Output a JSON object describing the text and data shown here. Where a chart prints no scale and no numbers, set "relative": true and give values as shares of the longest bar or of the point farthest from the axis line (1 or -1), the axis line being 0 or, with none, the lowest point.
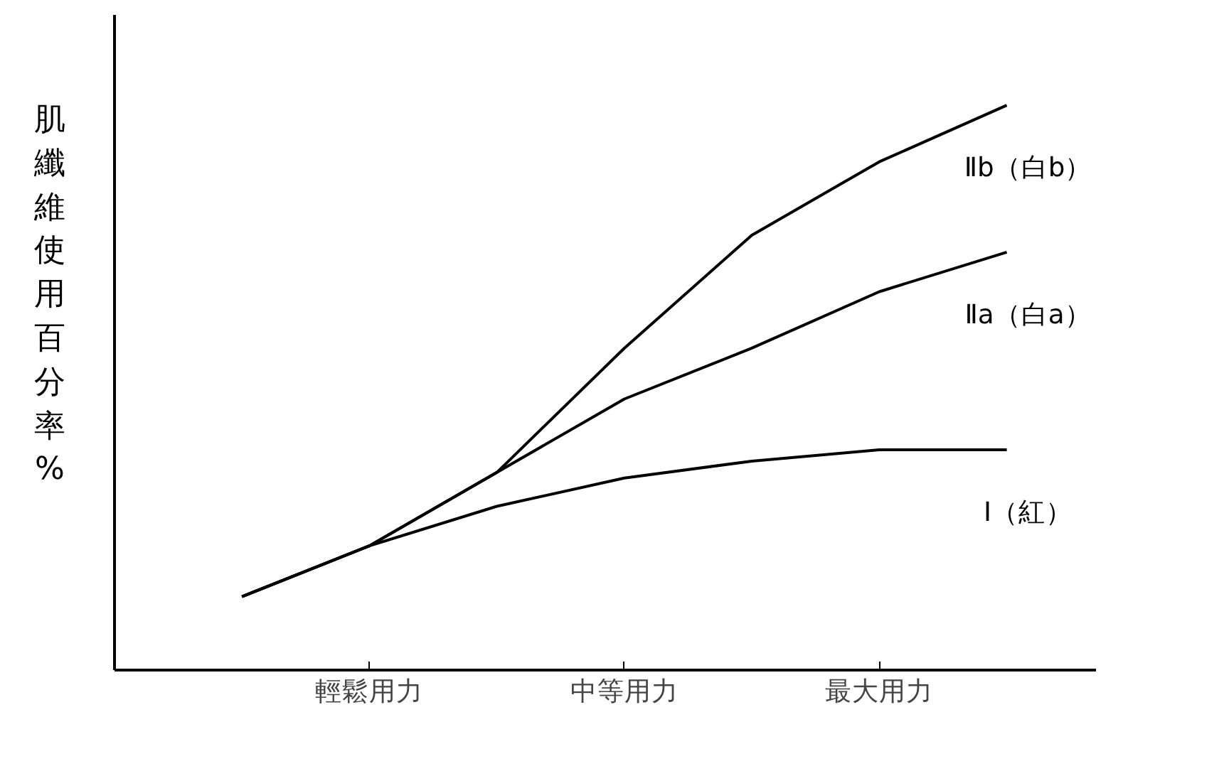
{
  "chart_data": {
    "type": "line",
    "relative": true,
    "ylabel": "肌纖維使用百分率%",
    "grid": false,
    "marker": "none",
    "line_style": "solid",
    "categories": [
      null,
      "輕鬆用力",
      null,
      "中等用力",
      null,
      "最大用力",
      null
    ],
    "series": [
      {
        "name": "Ⅱb（白b）",
        "color": "#000000",
        "values": [
          0.13,
          0.22,
          0.35,
          0.57,
          0.77,
          0.9,
          1.0
        ]
      },
      {
        "name": "Ⅱa（白a）",
        "color": "#000000",
        "values": [
          0.13,
          0.22,
          0.35,
          0.48,
          0.57,
          0.67,
          0.74
        ]
      },
      {
        "name": "Ⅰ（紅）",
        "color": "#000000",
        "values": [
          0.13,
          0.22,
          0.29,
          0.34,
          0.37,
          0.39,
          0.39
        ]
      }
    ]
  }
}
